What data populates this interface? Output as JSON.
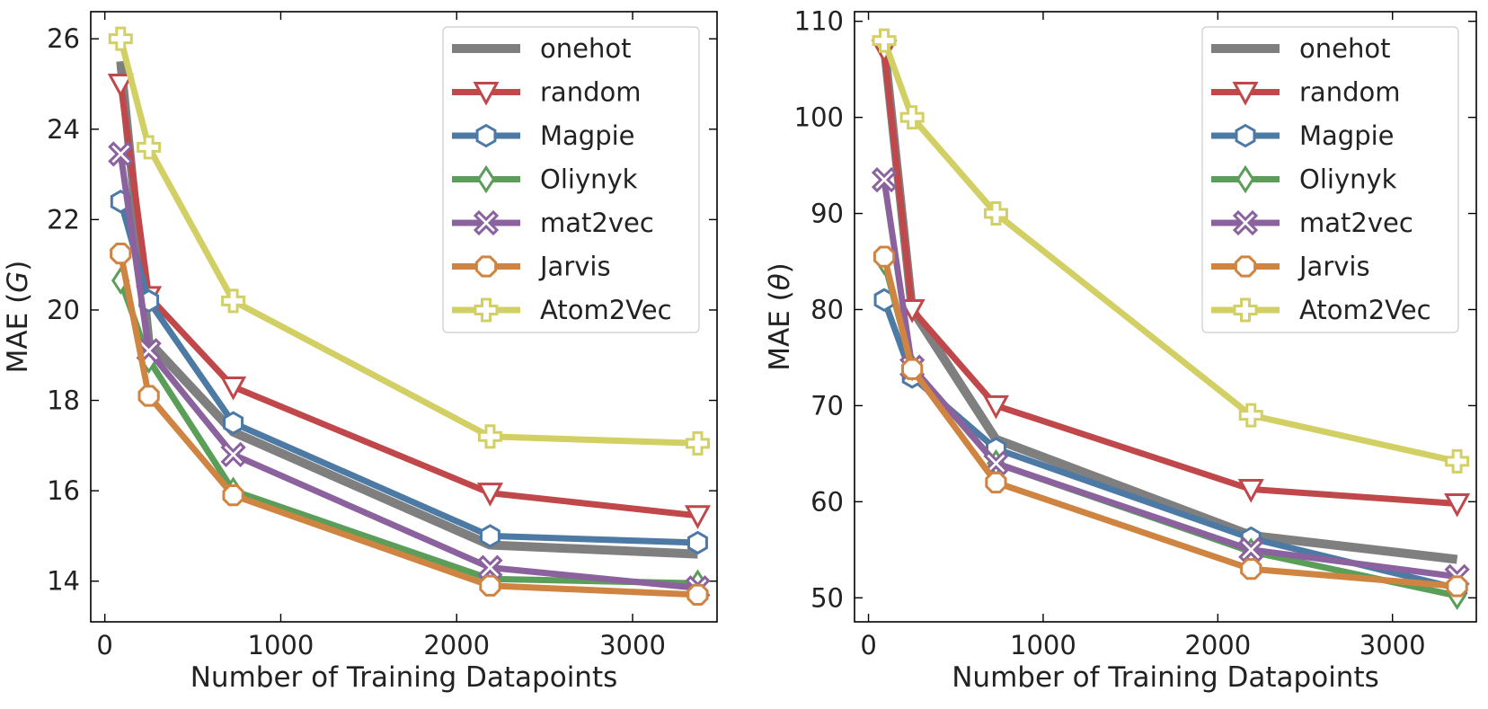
{
  "chart_data": [
    {
      "type": "line",
      "xlabel": "Number of Training Datapoints",
      "ylabel_prefix": "MAE (",
      "ylabel_symbol": "G",
      "ylabel_suffix": ")",
      "xlim": [
        -80,
        3480
      ],
      "ylim": [
        13.1,
        26.6
      ],
      "xticks": [
        0,
        1000,
        2000,
        3000
      ],
      "yticks": [
        14,
        16,
        18,
        20,
        22,
        24,
        26
      ],
      "legend_position": "top-right",
      "x": [
        90,
        250,
        730,
        2190,
        3370
      ],
      "series": [
        {
          "name": "onehot",
          "color": "#7f7f7f",
          "marker": "none",
          "values": [
            25.5,
            19.3,
            17.3,
            14.8,
            14.6
          ]
        },
        {
          "name": "random",
          "color": "#c0474a",
          "marker": "triangle-down",
          "values": [
            25.0,
            20.3,
            18.3,
            15.95,
            15.45
          ]
        },
        {
          "name": "Magpie",
          "color": "#4c7aa5",
          "marker": "hexagon",
          "values": [
            22.4,
            20.2,
            17.5,
            15.0,
            14.85
          ]
        },
        {
          "name": "Oliynyk",
          "color": "#5a9e5a",
          "marker": "diamond",
          "values": [
            20.65,
            18.9,
            16.0,
            14.05,
            13.95
          ]
        },
        {
          "name": "mat2vec",
          "color": "#8b629e",
          "marker": "x",
          "values": [
            23.45,
            19.1,
            16.8,
            14.3,
            13.85
          ]
        },
        {
          "name": "Jarvis",
          "color": "#cf8541",
          "marker": "octagon",
          "values": [
            21.25,
            18.1,
            15.9,
            13.9,
            13.7
          ]
        },
        {
          "name": "Atom2Vec",
          "color": "#d2d065",
          "marker": "plus",
          "values": [
            26.0,
            23.6,
            20.2,
            17.2,
            17.05
          ]
        }
      ]
    },
    {
      "type": "line",
      "xlabel": "Number of Training Datapoints",
      "ylabel_prefix": "MAE (",
      "ylabel_symbol": "θ",
      "ylabel_suffix": ")",
      "xlim": [
        -80,
        3480
      ],
      "ylim": [
        47.5,
        111
      ],
      "xticks": [
        0,
        1000,
        2000,
        3000
      ],
      "yticks": [
        50,
        60,
        70,
        80,
        90,
        100,
        110
      ],
      "legend_position": "top-right",
      "x": [
        90,
        250,
        730,
        2190,
        3370
      ],
      "series": [
        {
          "name": "onehot",
          "color": "#7f7f7f",
          "marker": "none",
          "values": [
            107.5,
            80.0,
            66.5,
            56.5,
            54.0
          ]
        },
        {
          "name": "random",
          "color": "#c0474a",
          "marker": "triangle-down",
          "values": [
            107.0,
            80.0,
            70.0,
            61.3,
            59.8
          ]
        },
        {
          "name": "Magpie",
          "color": "#4c7aa5",
          "marker": "hexagon",
          "values": [
            81.0,
            73.0,
            65.5,
            56.2,
            51.0
          ]
        },
        {
          "name": "Oliynyk",
          "color": "#5a9e5a",
          "marker": "diamond",
          "values": [
            85.0,
            74.0,
            64.0,
            54.8,
            50.2
          ]
        },
        {
          "name": "mat2vec",
          "color": "#8b629e",
          "marker": "x",
          "values": [
            93.5,
            74.0,
            64.0,
            55.0,
            52.2
          ]
        },
        {
          "name": "Jarvis",
          "color": "#cf8541",
          "marker": "octagon",
          "values": [
            85.5,
            73.8,
            62.0,
            53.0,
            51.2
          ]
        },
        {
          "name": "Atom2Vec",
          "color": "#d2d065",
          "marker": "plus",
          "values": [
            108.0,
            100.0,
            90.0,
            69.0,
            64.2
          ]
        }
      ]
    }
  ]
}
